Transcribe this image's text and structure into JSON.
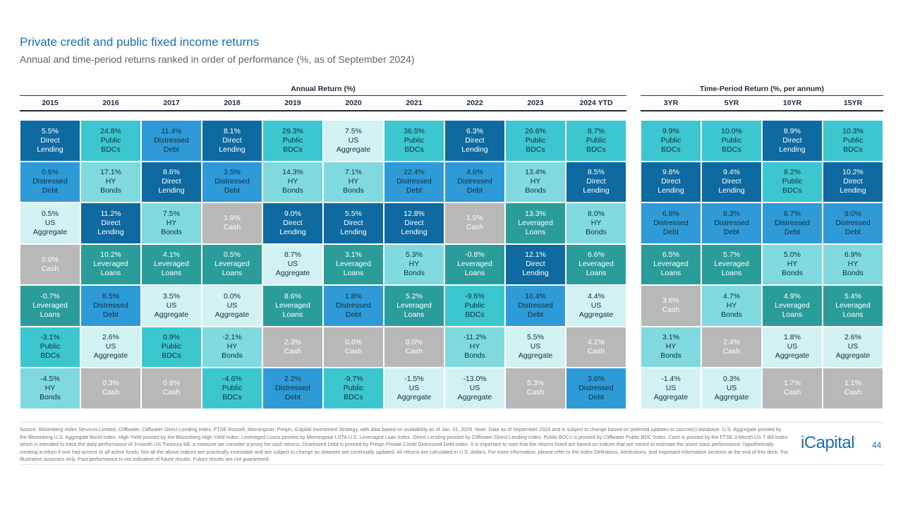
{
  "header": {
    "title": "Private credit and public fixed income returns",
    "subtitle": "Annual and time-period returns ranked in order of performance (%, as of September 2024)"
  },
  "chart_data": {
    "type": "table",
    "annual": {
      "label": "Annual Return (%)",
      "columns": [
        "2015",
        "2016",
        "2017",
        "2018",
        "2019",
        "2020",
        "2021",
        "2022",
        "2023",
        "2024 YTD"
      ],
      "cells": [
        [
          [
            "5.5%",
            "Direct Lending",
            "dl"
          ],
          [
            "0.6%",
            "Distressed Debt",
            "dd"
          ],
          [
            "0.5%",
            "US Aggregate",
            "us"
          ],
          [
            "0.0%",
            "Cash",
            "cash"
          ],
          [
            "-0.7%",
            "Leveraged Loans",
            "ll"
          ],
          [
            "-3.1%",
            "Public BDCs",
            "bdc"
          ],
          [
            "-4.5%",
            "HY Bonds",
            "hy"
          ]
        ],
        [
          [
            "24.8%",
            "Public BDCs",
            "bdc"
          ],
          [
            "17.1%",
            "HY Bonds",
            "hy"
          ],
          [
            "11.2%",
            "Direct Lending",
            "dl"
          ],
          [
            "10.2%",
            "Leveraged Loans",
            "ll"
          ],
          [
            "8.5%",
            "Distressed Debt",
            "dd"
          ],
          [
            "2.6%",
            "US Aggregate",
            "us"
          ],
          [
            "0.3%",
            "Cash",
            "cash"
          ]
        ],
        [
          [
            "11.4%",
            "Distressed Debt",
            "dd"
          ],
          [
            "8.6%",
            "Direct Lending",
            "dl"
          ],
          [
            "7.5%",
            "HY Bonds",
            "hy"
          ],
          [
            "4.1%",
            "Leveraged Loans",
            "ll"
          ],
          [
            "3.5%",
            "US Aggregate",
            "us"
          ],
          [
            "0.9%",
            "Public BDCs",
            "bdc"
          ],
          [
            "0.8%",
            "Cash",
            "cash"
          ]
        ],
        [
          [
            "8.1%",
            "Direct Lending",
            "dl"
          ],
          [
            "3.5%",
            "Distressed Debt",
            "dd"
          ],
          [
            "1.9%",
            "Cash",
            "cash"
          ],
          [
            "0.5%",
            "Leveraged Loans",
            "ll"
          ],
          [
            "0.0%",
            "US Aggregate",
            "us"
          ],
          [
            "-2.1%",
            "HY Bonds",
            "hy"
          ],
          [
            "-4.6%",
            "Public BDCs",
            "bdc"
          ]
        ],
        [
          [
            "29.3%",
            "Public BDCs",
            "bdc"
          ],
          [
            "14.3%",
            "HY Bonds",
            "hy"
          ],
          [
            "9.0%",
            "Direct Lending",
            "dl"
          ],
          [
            "8.7%",
            "US Aggregate",
            "us"
          ],
          [
            "8.6%",
            "Leveraged Loans",
            "ll"
          ],
          [
            "2.3%",
            "Cash",
            "cash"
          ],
          [
            "2.2%",
            "Distressed Debt",
            "dd"
          ]
        ],
        [
          [
            "7.5%",
            "US Aggregate",
            "us"
          ],
          [
            "7.1%",
            "HY Bonds",
            "hy"
          ],
          [
            "5.5%",
            "Direct Lending",
            "dl"
          ],
          [
            "3.1%",
            "Leveraged Loans",
            "ll"
          ],
          [
            "1.8%",
            "Distressed Debt",
            "dd"
          ],
          [
            "0.6%",
            "Cash",
            "cash"
          ],
          [
            "-9.7%",
            "Public BDCs",
            "bdc"
          ]
        ],
        [
          [
            "36.5%",
            "Public BDCs",
            "bdc"
          ],
          [
            "22.4%",
            "Distressed Debt",
            "dd"
          ],
          [
            "12.8%",
            "Direct Lending",
            "dl"
          ],
          [
            "5.3%",
            "HY Bonds",
            "hy"
          ],
          [
            "5.2%",
            "Leveraged Loans",
            "ll"
          ],
          [
            "0.0%",
            "Cash",
            "cash"
          ],
          [
            "-1.5%",
            "US Aggregate",
            "us"
          ]
        ],
        [
          [
            "6.3%",
            "Direct Lending",
            "dl"
          ],
          [
            "4.6%",
            "Distressed Debt",
            "dd"
          ],
          [
            "1.5%",
            "Cash",
            "cash"
          ],
          [
            "-0.8%",
            "Leveraged Loans",
            "ll"
          ],
          [
            "-9.6%",
            "Public BDCs",
            "bdc"
          ],
          [
            "-11.2%",
            "HY Bonds",
            "hy"
          ],
          [
            "-13.0%",
            "US Aggregate",
            "us"
          ]
        ],
        [
          [
            "26.6%",
            "Public BDCs",
            "bdc"
          ],
          [
            "13.4%",
            "HY Bonds",
            "hy"
          ],
          [
            "13.3%",
            "Leveraged Loans",
            "ll"
          ],
          [
            "12.1%",
            "Direct Lending",
            "dl"
          ],
          [
            "10.4%",
            "Distressed Debt",
            "dd"
          ],
          [
            "5.5%",
            "US Aggregate",
            "us"
          ],
          [
            "5.3%",
            "Cash",
            "cash"
          ]
        ],
        [
          [
            "8.7%",
            "Public BDCs",
            "bdc"
          ],
          [
            "8.5%",
            "Direct Lending",
            "dl"
          ],
          [
            "8.0%",
            "HY Bonds",
            "hy"
          ],
          [
            "6.6%",
            "Leveraged Loans",
            "ll"
          ],
          [
            "4.4%",
            "US Aggregate",
            "us"
          ],
          [
            "4.2%",
            "Cash",
            "cash"
          ],
          [
            "3.6%",
            "Distressed Debt",
            "dd"
          ]
        ]
      ]
    },
    "period": {
      "label": "Time-Period Return (%, per annum)",
      "columns": [
        "3YR",
        "5YR",
        "10YR",
        "15YR"
      ],
      "cells": [
        [
          [
            "9.9%",
            "Public BDCs",
            "bdc"
          ],
          [
            "9.8%",
            "Direct Lending",
            "dl"
          ],
          [
            "6.8%",
            "Distressed Debt",
            "dd"
          ],
          [
            "6.5%",
            "Leveraged Loans",
            "ll"
          ],
          [
            "3.6%",
            "Cash",
            "cash"
          ],
          [
            "3.1%",
            "HY Bonds",
            "hy"
          ],
          [
            "-1.4%",
            "US Aggregate",
            "us"
          ]
        ],
        [
          [
            "10.0%",
            "Public BDCs",
            "bdc"
          ],
          [
            "9.4%",
            "Direct Lending",
            "dl"
          ],
          [
            "8.3%",
            "Distressed Debt",
            "dd"
          ],
          [
            "5.7%",
            "Leveraged Loans",
            "ll"
          ],
          [
            "4.7%",
            "HY Bonds",
            "hy"
          ],
          [
            "2.4%",
            "Cash",
            "cash"
          ],
          [
            "0.3%",
            "US Aggregate",
            "us"
          ]
        ],
        [
          [
            "8.9%",
            "Direct Lending",
            "dl"
          ],
          [
            "8.2%",
            "Public BDCs",
            "bdc"
          ],
          [
            "6.7%",
            "Distressed Debt",
            "dd"
          ],
          [
            "5.0%",
            "HY Bonds",
            "hy"
          ],
          [
            "4.9%",
            "Leveraged Loans",
            "ll"
          ],
          [
            "1.8%",
            "US Aggregate",
            "us"
          ],
          [
            "1.7%",
            "Cash",
            "cash"
          ]
        ],
        [
          [
            "10.3%",
            "Public BDCs",
            "bdc"
          ],
          [
            "10.2%",
            "Direct Lending",
            "dl"
          ],
          [
            "9.0%",
            "Distressed Debt",
            "dd"
          ],
          [
            "6.9%",
            "HY Bonds",
            "hy"
          ],
          [
            "5.4%",
            "Leveraged Loans",
            "ll"
          ],
          [
            "2.6%",
            "US Aggregate",
            "us"
          ],
          [
            "1.1%",
            "Cash",
            "cash"
          ]
        ]
      ]
    },
    "colors": {
      "dl": {
        "bg": "#0e6aa0",
        "fg": "#ffffff"
      },
      "bdc": {
        "bg": "#3cc6cf",
        "fg": "#10303d"
      },
      "dd": {
        "bg": "#2f9ad8",
        "fg": "#10303d"
      },
      "hy": {
        "bg": "#7fd9de",
        "fg": "#10303d"
      },
      "us": {
        "bg": "#d2f1f3",
        "fg": "#10303d"
      },
      "cash": {
        "bg": "#b8b8b8",
        "fg": "#ffffff"
      },
      "ll": {
        "bg": "#2a9d9a",
        "fg": "#ffffff"
      }
    }
  },
  "footer": {
    "source": "Source: Bloomberg Index Services Limited, Cliffwater, Cliffwater Direct Lending Index, FTSE Russell, Morningstar, Preqin, iCapital Investment Strategy, with data based on availability as of Jan. 31, 2025. Note: Data as of September 2024 and is subject to change based on potential updates to source(s) database. U.S. Aggregate proxied by the Bloomberg U.S. Aggregate Bond Index. High Yield proxied by the Bloomberg High Yield Index. Leveraged Loans proxied by Morningstar LSTA U.S. Leveraged Loan Index. Direct Lending proxied by Cliffwater Direct Lending Index. Public BDCs is proxied by Cliffwater Public BDC Index. Cash is proxied by the FTSE 3-Month US T Bill Index which is intended to track the daily performance of 3-month US Treasury bill, a measure we consider a proxy for cash returns. Distressed Debt is proxied by Preqin Private Credit Distressed Debt Index. It is important to note that the returns listed are based on indices that are meant to estimate the asset class performance, hypothetically creating a return if one had access to all active funds. Not all the above indices are practically investable and are subject to change as datasets are continually updated. All returns are calculated in U.S. dollars. For more information, please refer to the Index Definitions, Attributions, and Important Information sections at the end of this deck. For illustrative purposes only. Past performance is not indicative of future results. Future results are not guaranteed.",
    "logo": "iCapital",
    "logo_mark": ".",
    "page": "44"
  }
}
